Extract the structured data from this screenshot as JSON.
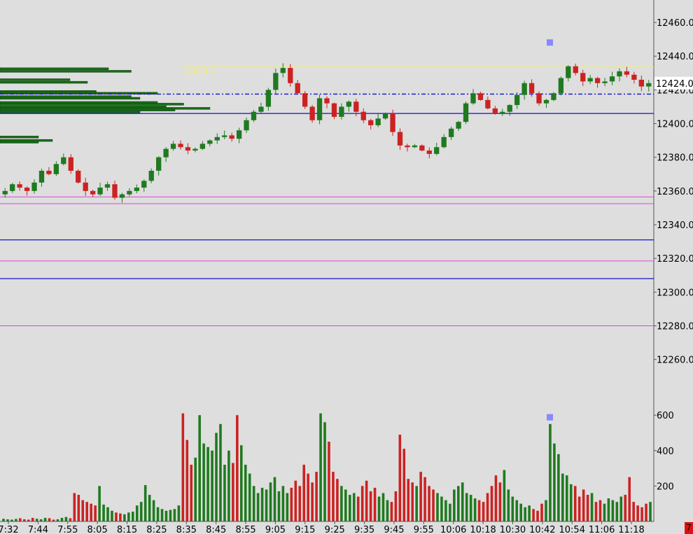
{
  "colors": {
    "background": "#dedede",
    "axis": "#555555",
    "up": "#1f7a1f",
    "down": "#cc2222",
    "level_blue": "#1010cc",
    "level_magenta": "#dd44dd",
    "level_yellow": "#f0f060",
    "volume_profile": "#1a6a1a",
    "marker": "#8888ff",
    "corner_badge": "#dd1111"
  },
  "corner_badge_text": "7",
  "chart_data": [
    {
      "type": "candlestick",
      "title": "",
      "ylim": [
        12247,
        12470
      ],
      "y_ticks": [
        "12460.0",
        "12440.0",
        "12420.0",
        "12400.0",
        "12380.0",
        "12360.0",
        "12340.0",
        "12320.0",
        "12300.0",
        "12280.0",
        "12260.0"
      ],
      "y_tick_values": [
        12460,
        12440,
        12420,
        12400,
        12380,
        12360,
        12340,
        12320,
        12300,
        12280,
        12260
      ],
      "x_ticks": [
        "7:32",
        "7:44",
        "7:55",
        "8:05",
        "8:15",
        "8:25",
        "8:35",
        "8:45",
        "8:55",
        "9:05",
        "9:15",
        "9:25",
        "9:35",
        "9:45",
        "9:55",
        "10:06",
        "10:18",
        "10:30",
        "10:42",
        "10:54",
        "11:06",
        "11:18"
      ],
      "last_price_label": "12424.0",
      "last_price": 12424,
      "annotation_label": "12433.5",
      "annotation_level": 12433.5,
      "horizontal_levels": [
        {
          "value": 12433.5,
          "color": "yellow"
        },
        {
          "value": 12417.5,
          "color": "blue",
          "style": "dashdot"
        },
        {
          "value": 12406,
          "color": "blue"
        },
        {
          "value": 12356.5,
          "color": "magenta"
        },
        {
          "value": 12352.5,
          "color": "magenta"
        },
        {
          "value": 12331,
          "color": "blue"
        },
        {
          "value": 12318.5,
          "color": "magenta"
        },
        {
          "value": 12308,
          "color": "blue"
        },
        {
          "value": 12280,
          "color": "magenta"
        }
      ],
      "price_path": [
        12358,
        12360,
        12364,
        12362,
        12360,
        12365,
        12372,
        12370,
        12376,
        12380,
        12372,
        12365,
        12360,
        12358,
        12362,
        12364,
        12356,
        12358,
        12360,
        12362,
        12366,
        12372,
        12380,
        12385,
        12388,
        12386,
        12384,
        12385,
        12388,
        12390,
        12392,
        12393,
        12391,
        12396,
        12402,
        12407,
        12410,
        12420,
        12430,
        12433,
        12424,
        12418,
        12410,
        12402,
        12415,
        12412,
        12404,
        12410,
        12413,
        12407,
        12402,
        12399,
        12403,
        12406,
        12395,
        12387,
        12386,
        12387,
        12384,
        12382,
        12386,
        12392,
        12397,
        12401,
        12412,
        12418,
        12414,
        12409,
        12406,
        12407,
        12411,
        12417,
        12424,
        12418,
        12412,
        12414,
        12418,
        12427,
        12434,
        12430,
        12425,
        12427,
        12424,
        12425,
        12428,
        12431,
        12429,
        12426,
        12422,
        12424
      ],
      "volume_profile_prices": [
        12432.5,
        12431,
        12426,
        12424.5,
        12419,
        12418,
        12416,
        12415,
        12412.5,
        12411.5,
        12410,
        12409,
        12408,
        12407,
        12392,
        12390,
        12389
      ],
      "volume_profile_sizes": [
        0.62,
        0.75,
        0.4,
        0.5,
        0.55,
        0.9,
        0.75,
        0.8,
        0.9,
        1.05,
        0.95,
        1.2,
        1.0,
        0.8,
        0.22,
        0.3,
        0.22
      ]
    },
    {
      "type": "bar",
      "title": "",
      "ylim": [
        0,
        660
      ],
      "y_ticks": [
        "600",
        "400",
        "200"
      ],
      "y_tick_values": [
        600,
        400,
        200
      ],
      "values": [
        15,
        12,
        10,
        14,
        18,
        12,
        10,
        20,
        15,
        12,
        20,
        18,
        10,
        12,
        20,
        25,
        18,
        160,
        150,
        120,
        110,
        100,
        90,
        200,
        95,
        80,
        60,
        50,
        45,
        40,
        50,
        55,
        90,
        110,
        205,
        150,
        120,
        80,
        70,
        60,
        65,
        70,
        90,
        610,
        460,
        320,
        360,
        600,
        440,
        420,
        400,
        500,
        550,
        320,
        400,
        330,
        600,
        430,
        320,
        270,
        200,
        160,
        190,
        180,
        220,
        250,
        170,
        200,
        160,
        190,
        230,
        200,
        320,
        270,
        220,
        280,
        610,
        560,
        450,
        280,
        240,
        200,
        180,
        150,
        160,
        140,
        200,
        230,
        170,
        190,
        140,
        160,
        120,
        110,
        170,
        490,
        410,
        240,
        220,
        200,
        280,
        250,
        200,
        180,
        160,
        140,
        120,
        100,
        180,
        200,
        220,
        160,
        150,
        130,
        120,
        110,
        160,
        200,
        260,
        220,
        290,
        180,
        140,
        120,
        100,
        80,
        90,
        70,
        60,
        100,
        120,
        550,
        440,
        380,
        270,
        260,
        210,
        200,
        140,
        180,
        150,
        160,
        110,
        120,
        100,
        130,
        120,
        110,
        140,
        150,
        250,
        110,
        90,
        80,
        100,
        110
      ],
      "marker_value": 590
    }
  ]
}
